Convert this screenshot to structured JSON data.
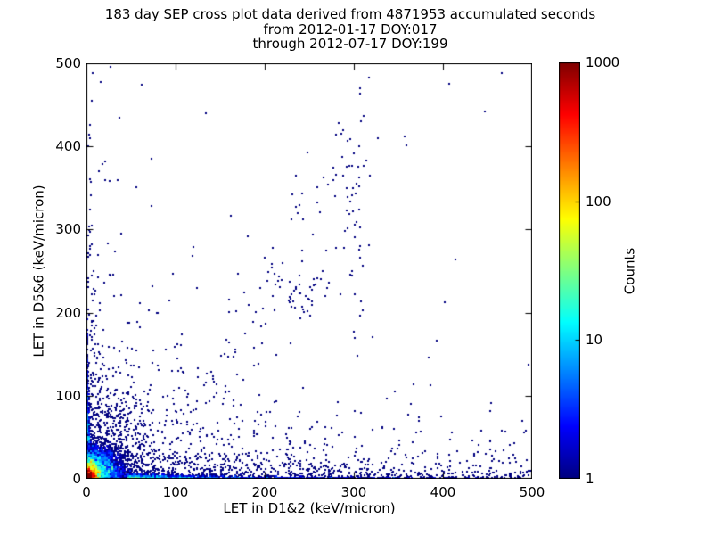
{
  "figure": {
    "title_line1": "183 day SEP cross plot data derived from 4871953 accumulated seconds",
    "title_line2": "from 2012-01-17 DOY:017",
    "title_line3": "through 2012-07-17 DOY:199",
    "stats": {
      "period_days": "183",
      "accumulated_seconds": "4871953",
      "date_from": "2012-01-17",
      "doy_from": "017",
      "date_to": "2012-07-17",
      "doy_to": "199"
    }
  },
  "chart_data": {
    "type": "scatter",
    "title": "183 day SEP cross plot data derived from 4871953 accumulated seconds from 2012-01-17 DOY:017 through 2012-07-17 DOY:199",
    "xlabel": "LET in D1&2 (keV/micron)",
    "ylabel": "LET in D5&6 (keV/micron)",
    "xlim": [
      0,
      500
    ],
    "ylim": [
      0,
      500
    ],
    "xticks": [
      0,
      100,
      200,
      300,
      400,
      500
    ],
    "yticks": [
      0,
      100,
      200,
      300,
      400,
      500
    ],
    "grid": false,
    "background": "#ffffff",
    "point_color": "#000080",
    "colorbar": {
      "label": "Counts",
      "colormap": "jet",
      "scale": "log",
      "min": 1,
      "max": 1000,
      "ticks": [
        1,
        10,
        100,
        1000
      ]
    },
    "seed": 42,
    "density_core": {
      "amp": 1600,
      "rx": 5.5,
      "ry": 7.0,
      "p": 0.8,
      "halo_amp": 45,
      "halo_rx": 16,
      "halo_ry": 14,
      "halo_p": 0.65,
      "noise": 0.55,
      "extent": 110
    },
    "edge_bands": {
      "bottom": {
        "amp1": 70,
        "scale1": 30,
        "amp2": 7,
        "scale2": 120,
        "amp3": 1.6,
        "scale3": 400,
        "rows": 3,
        "noise": 0.55
      },
      "left": {
        "amp1": 60,
        "scale1": 22,
        "amp2": 6,
        "scale2": 75,
        "extent": 185,
        "cols": 3,
        "noise": 0.55
      }
    },
    "scatter_components": [
      {
        "kind": "expexp",
        "n": 650,
        "xscale": 55,
        "yscale": 42
      },
      {
        "kind": "expexp",
        "n": 260,
        "xscale": 120,
        "yscale": 22
      },
      {
        "kind": "expexp",
        "n": 150,
        "xscale": 22,
        "yscale": 105
      },
      {
        "kind": "expexp",
        "n": 180,
        "xscale": 85,
        "yscale": 65
      },
      {
        "kind": "strip-x",
        "n": 430,
        "x0": 0,
        "x1": 500,
        "yscale": 7
      },
      {
        "kind": "strip-x",
        "n": 200,
        "x0": 0,
        "x1": 500,
        "yscale": 26
      },
      {
        "kind": "strip-x",
        "n": 55,
        "x0": 0,
        "x1": 500,
        "yscale": 110
      },
      {
        "kind": "strip-y",
        "n": 70,
        "ymax": 500,
        "yexp": 170,
        "xscale": 4
      },
      {
        "kind": "line",
        "n": 85,
        "x0": 115,
        "y0": 75,
        "x1": 308,
        "y1": 420,
        "spread": 20
      },
      {
        "kind": "gauss",
        "n": 45,
        "x": 236,
        "y": 222,
        "sx": 17,
        "sy": 15
      },
      {
        "kind": "gauss",
        "n": 38,
        "x": 302,
        "y": 295,
        "sx": 8,
        "sy": 75
      },
      {
        "kind": "gauss",
        "n": 40,
        "x": 225,
        "y": 20,
        "sx": 30,
        "sy": 12
      },
      {
        "kind": "gauss",
        "n": 26,
        "x": 12,
        "y": 62,
        "sx": 2.5,
        "sy": 42
      },
      {
        "kind": "gauss",
        "n": 18,
        "x": 22,
        "y": 52,
        "sx": 2.5,
        "sy": 34
      },
      {
        "kind": "gauss",
        "n": 24,
        "x": 33,
        "y": 58,
        "sx": 2.5,
        "sy": 42
      },
      {
        "kind": "gauss",
        "n": 24,
        "x": 44,
        "y": 62,
        "sx": 2.5,
        "sy": 48
      },
      {
        "kind": "gauss",
        "n": 16,
        "x": 57,
        "y": 46,
        "sx": 2.5,
        "sy": 32
      },
      {
        "kind": "uniform",
        "n": 26,
        "x0": 0,
        "x1": 500,
        "y0": 0,
        "y1": 500
      }
    ]
  },
  "layout_text": {
    "note": ""
  }
}
